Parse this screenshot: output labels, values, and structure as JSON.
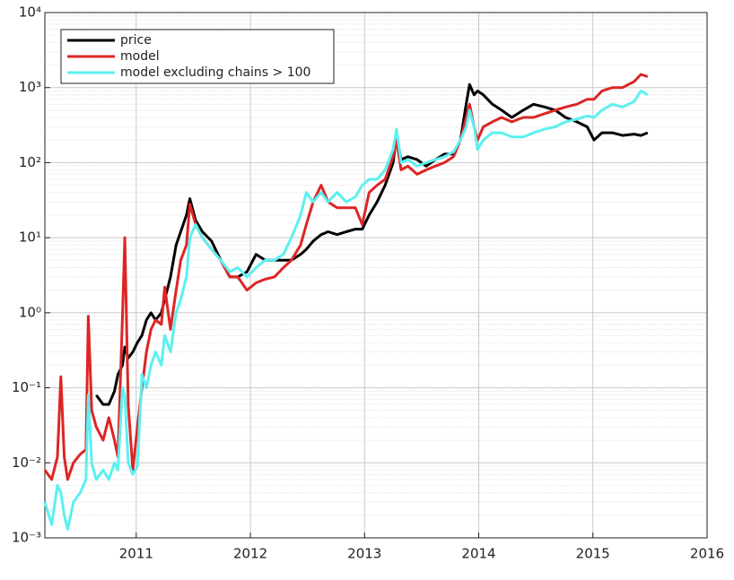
{
  "chart_data": {
    "type": "line",
    "x": [
      2010.2,
      2010.26,
      2010.31,
      2010.34,
      2010.37,
      2010.4,
      2010.45,
      2010.51,
      2010.56,
      2010.58,
      2010.61,
      2010.65,
      2010.71,
      2010.76,
      2010.81,
      2010.84,
      2010.88,
      2010.9,
      2010.93,
      2010.97,
      2011.01,
      2011.05,
      2011.09,
      2011.13,
      2011.17,
      2011.22,
      2011.25,
      2011.3,
      2011.35,
      2011.39,
      2011.44,
      2011.47,
      2011.52,
      2011.58,
      2011.66,
      2011.74,
      2011.82,
      2011.89,
      2011.97,
      2012.05,
      2012.13,
      2012.21,
      2012.29,
      2012.36,
      2012.44,
      2012.49,
      2012.55,
      2012.62,
      2012.68,
      2012.76,
      2012.84,
      2012.92,
      2012.98,
      2013.04,
      2013.11,
      2013.18,
      2013.25,
      2013.28,
      2013.32,
      2013.38,
      2013.46,
      2013.54,
      2013.62,
      2013.7,
      2013.78,
      2013.84,
      2013.89,
      2013.92,
      2013.96,
      2013.99,
      2014.04,
      2014.12,
      2014.2,
      2014.29,
      2014.39,
      2014.48,
      2014.58,
      2014.67,
      2014.76,
      2014.86,
      2014.95,
      2015.01,
      2015.08,
      2015.17,
      2015.26,
      2015.36,
      2015.42,
      2015.48
    ],
    "series": [
      {
        "name": "price",
        "color": "#000000",
        "values": [
          null,
          null,
          null,
          null,
          null,
          null,
          null,
          null,
          null,
          null,
          null,
          0.08,
          0.06,
          0.06,
          0.09,
          0.15,
          0.2,
          0.35,
          0.25,
          0.3,
          0.4,
          0.5,
          0.8,
          1.0,
          0.8,
          1.0,
          1.5,
          3,
          8,
          12,
          20,
          33,
          17,
          12,
          9,
          5,
          3,
          3,
          3.5,
          6,
          5,
          5,
          5,
          5,
          6,
          7,
          9,
          11,
          12,
          11,
          12,
          13,
          13,
          20,
          30,
          50,
          100,
          230,
          110,
          120,
          110,
          90,
          110,
          130,
          130,
          200,
          600,
          1100,
          800,
          900,
          800,
          600,
          500,
          400,
          500,
          600,
          550,
          500,
          400,
          350,
          300,
          200,
          250,
          250,
          230,
          240,
          230,
          250
        ]
      },
      {
        "name": "model",
        "color": "#dd2525",
        "values": [
          0.008,
          0.006,
          0.012,
          0.14,
          0.012,
          0.006,
          0.01,
          0.013,
          0.015,
          0.9,
          0.05,
          0.03,
          0.02,
          0.04,
          0.02,
          0.012,
          0.9,
          10,
          0.06,
          0.008,
          0.03,
          0.1,
          0.3,
          0.6,
          0.8,
          0.7,
          2.2,
          0.6,
          2,
          5,
          8,
          28,
          15,
          10,
          7,
          5,
          3,
          3,
          2,
          2.5,
          2.8,
          3,
          4,
          5,
          8,
          15,
          30,
          50,
          30,
          25,
          25,
          25,
          15,
          40,
          50,
          60,
          120,
          200,
          80,
          90,
          70,
          80,
          90,
          100,
          120,
          200,
          400,
          600,
          300,
          200,
          300,
          350,
          400,
          350,
          400,
          400,
          450,
          500,
          550,
          600,
          700,
          700,
          900,
          1000,
          1000,
          1200,
          1500,
          1400
        ]
      },
      {
        "name": "model excluding chains > 100",
        "color": "#5cf0f0",
        "values": [
          0.003,
          0.0015,
          0.005,
          0.004,
          0.002,
          0.0013,
          0.003,
          0.004,
          0.006,
          0.08,
          0.01,
          0.006,
          0.008,
          0.006,
          0.01,
          0.008,
          0.1,
          0.08,
          0.01,
          0.007,
          0.009,
          0.15,
          0.1,
          0.2,
          0.3,
          0.2,
          0.5,
          0.3,
          1,
          1.5,
          3,
          10,
          15,
          10,
          7,
          5,
          3.5,
          4,
          3,
          4,
          5,
          5,
          6,
          10,
          20,
          40,
          30,
          40,
          30,
          40,
          30,
          35,
          50,
          60,
          60,
          80,
          150,
          280,
          100,
          110,
          90,
          100,
          110,
          120,
          140,
          200,
          300,
          500,
          300,
          150,
          200,
          250,
          250,
          220,
          220,
          250,
          280,
          300,
          350,
          380,
          420,
          400,
          500,
          600,
          550,
          650,
          900,
          800
        ]
      }
    ],
    "xlim": [
      2010.2,
      2016
    ],
    "xticks": [
      2011,
      2012,
      2013,
      2014,
      2015,
      2016
    ],
    "ylim": [
      0.001,
      10000
    ],
    "log_y": true,
    "yticks": [
      {
        "value": 0.001,
        "label": "10⁻³"
      },
      {
        "value": 0.01,
        "label": "10⁻²"
      },
      {
        "value": 0.1,
        "label": "10⁻¹"
      },
      {
        "value": 1,
        "label": "10⁰"
      },
      {
        "value": 10,
        "label": "10¹"
      },
      {
        "value": 100,
        "label": "10²"
      },
      {
        "value": 1000,
        "label": "10³"
      },
      {
        "value": 10000,
        "label": "10⁴"
      }
    ],
    "grid": true,
    "minor_grid": true,
    "legend": "upper left"
  }
}
